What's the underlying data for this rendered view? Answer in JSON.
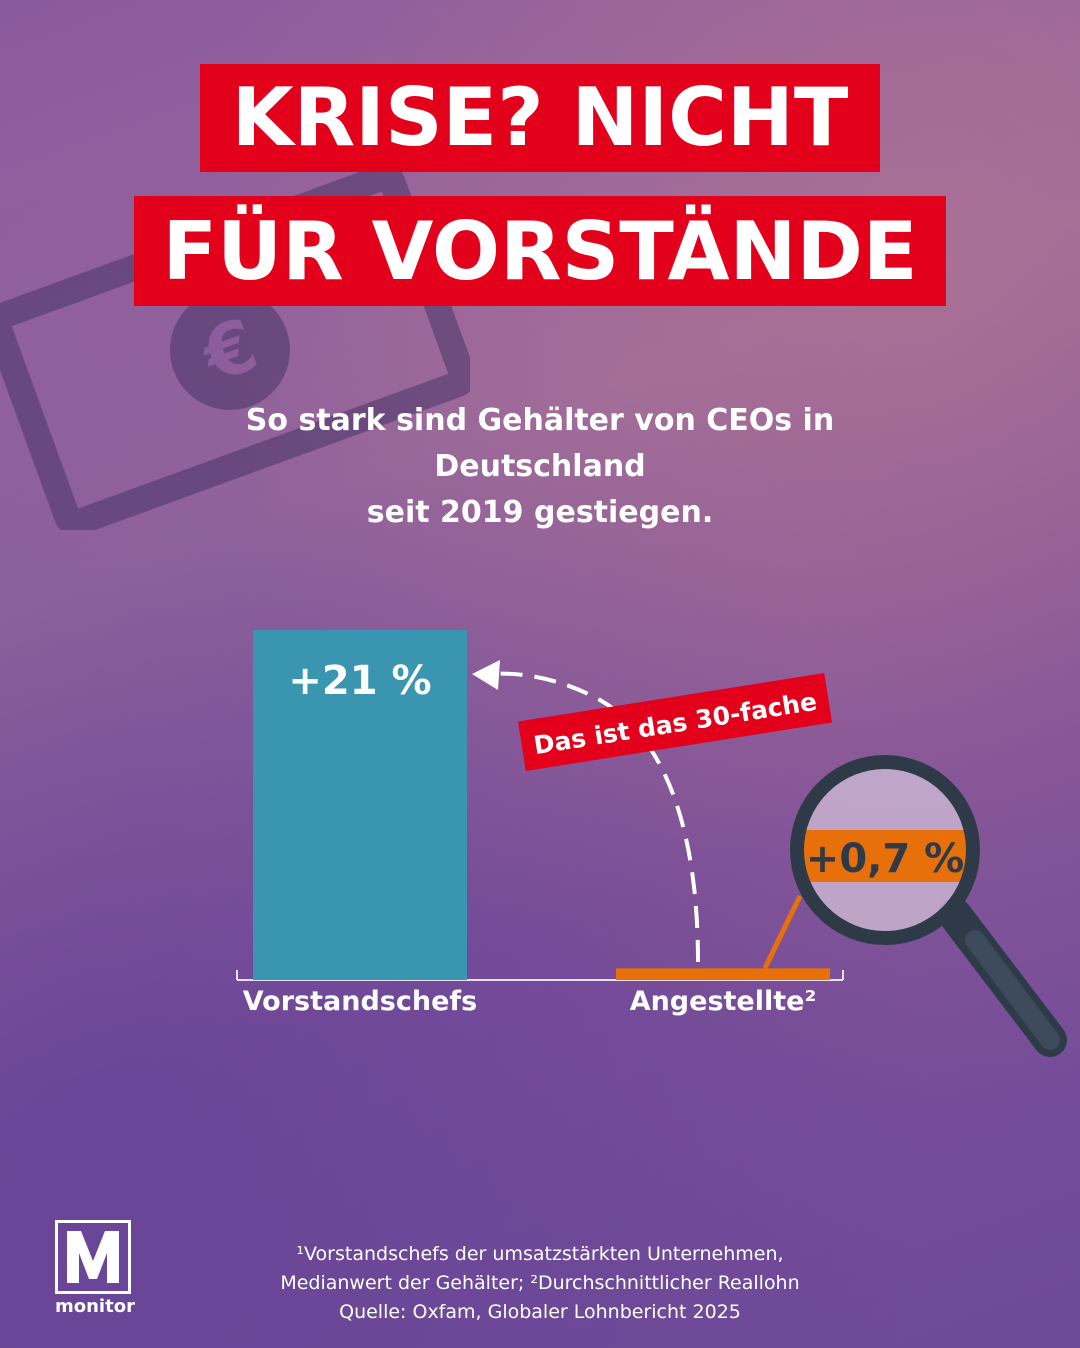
{
  "title": {
    "line1": "KRISE? NICHT",
    "line2": "FÜR VORSTÄNDE"
  },
  "subtitle": {
    "line1": "So stark sind Gehälter von CEOs in Deutschland",
    "line2": "seit 2019 gestiegen."
  },
  "annotation": "Das ist das 30-fache",
  "footnote": {
    "line1": "¹Vorstandschefs der umsatzstärkten Unternehmen,",
    "line2": "Medianwert der Gehälter; ²Durchschnittlicher Reallohn",
    "line3": "Quelle: Oxfam, Globaler Lohnbericht 2025"
  },
  "logo": {
    "mark": "M",
    "text": "monitor"
  },
  "icons": {
    "background": "euro-banknote-icon",
    "magnifier": "magnifying-glass-icon"
  },
  "colors": {
    "accent": "#e3001b",
    "ceo_bar": "#3a96b0",
    "employee_bar": "#e8700a"
  },
  "chart_data": {
    "type": "bar",
    "categories": [
      "Vorstandschefs",
      "Angestellte²"
    ],
    "values": [
      21,
      0.7
    ],
    "value_labels": [
      "+21 %",
      "+0,7 %"
    ],
    "unit": "%",
    "ylim": [
      0,
      21
    ]
  }
}
